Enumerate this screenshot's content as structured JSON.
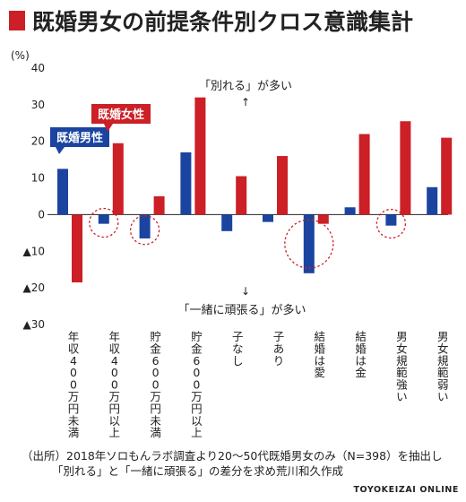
{
  "title": "既婚男女の前提条件別クロス意識集計",
  "colors": {
    "male": "#1a44a0",
    "female": "#cc1f26",
    "marker": "#cc1f26",
    "circle": "#cc1f26"
  },
  "chart_data": {
    "type": "bar",
    "unit": "(%)",
    "ylim": [
      -30,
      40
    ],
    "yticks": [
      {
        "value": 40,
        "label": "40"
      },
      {
        "value": 30,
        "label": "30"
      },
      {
        "value": 20,
        "label": "20"
      },
      {
        "value": 10,
        "label": "10"
      },
      {
        "value": 0,
        "label": "0"
      },
      {
        "value": -10,
        "label": "▲10"
      },
      {
        "value": -20,
        "label": "▲20"
      },
      {
        "value": -30,
        "label": "▲30"
      }
    ],
    "grid": false,
    "categories": [
      "年収400万円未満",
      "年収400万円以上",
      "貯金600万円未満",
      "貯金600万円以上",
      "子なし",
      "子あり",
      "結婚は愛",
      "結婚は金",
      "男女規範強い",
      "男女規範弱い"
    ],
    "series": [
      {
        "name": "既婚男性",
        "color": "#1a44a0",
        "values": [
          12.5,
          -2.5,
          -6.5,
          17,
          -4.5,
          -2,
          -16,
          2,
          -3,
          7.5
        ]
      },
      {
        "name": "既婚女性",
        "color": "#cc1f26",
        "values": [
          -18.5,
          19.5,
          5,
          32,
          10.5,
          16,
          -2.5,
          22,
          25.5,
          21
        ]
      }
    ],
    "annotations": {
      "top": "「別れる」が多い",
      "top_arrow": "↑",
      "bottom_arrow": "↓",
      "bottom": "「一緒に頑張る」が多い"
    },
    "highlight_circles": [
      {
        "category": 1,
        "series": 0
      },
      {
        "category": 2,
        "series": 0
      },
      {
        "category": 6,
        "series": 0
      },
      {
        "category": 8,
        "series": 0
      }
    ]
  },
  "note_lines": [
    "（出所）2018年ソロもんラボ調査より20〜50代既婚男女のみ（N=398）を抽出し",
    "「別れる」と「一緒に頑張る」の差分を求め荒川和久作成"
  ],
  "brand": "TOYOKEIZAI ONLINE"
}
